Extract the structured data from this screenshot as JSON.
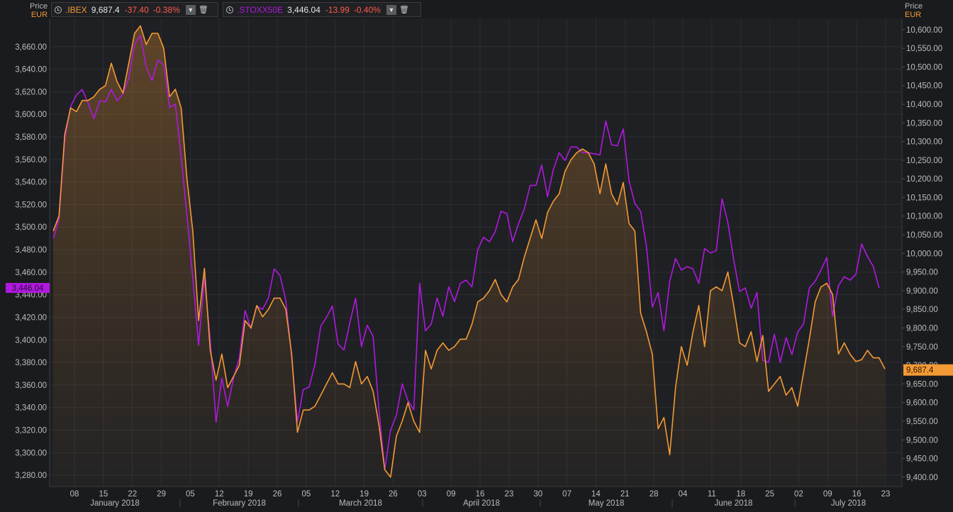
{
  "legend": {
    "ibex": {
      "symbol": ".IBEX",
      "last": "9,687.4",
      "change": "-37.40",
      "pct": "-0.38%"
    },
    "stoxx": {
      "symbol": ".STOXX50E",
      "last": "3,446.04",
      "change": "-13.99",
      "pct": "-0.40%"
    }
  },
  "left_axis": {
    "label": "Price",
    "currency": "EUR"
  },
  "right_axis": {
    "label": "Price",
    "currency": "EUR"
  },
  "colors": {
    "ibex": "#f39a34",
    "stoxx": "#b019e0",
    "background": "#1a1b1e",
    "grid": "#2d2e32",
    "text": "#bcbcbc",
    "negative": "#ff5a4a"
  },
  "icons": [
    "clock-icon",
    "chevron-down-icon",
    "trash-icon"
  ],
  "chart_data": {
    "type": "line",
    "x_ticks": [
      "08",
      "15",
      "22",
      "29",
      "05",
      "12",
      "19",
      "26",
      "05",
      "12",
      "19",
      "26",
      "03",
      "09",
      "16",
      "23",
      "30",
      "07",
      "14",
      "21",
      "28",
      "04",
      "11",
      "18",
      "25",
      "02",
      "09",
      "16",
      "23"
    ],
    "months": [
      "January 2018",
      "February 2018",
      "March 2018",
      "April 2018",
      "May 2018",
      "June 2018",
      "July 2018"
    ],
    "left_axis": {
      "series": "STOXX50E",
      "ylim": [
        3270,
        3685
      ],
      "ticks": [
        "3,280.00",
        "3,300.00",
        "3,320.00",
        "3,340.00",
        "3,360.00",
        "3,380.00",
        "3,400.00",
        "3,420.00",
        "3,440.00",
        "3,460.00",
        "3,480.00",
        "3,500.00",
        "3,520.00",
        "3,540.00",
        "3,560.00",
        "3,580.00",
        "3,600.00",
        "3,620.00",
        "3,640.00",
        "3,660.00"
      ],
      "last_label": "3,446.04"
    },
    "right_axis": {
      "series": "IBEX",
      "ylim": [
        9375,
        10630
      ],
      "ticks": [
        "9,400.00",
        "9,450.00",
        "9,500.00",
        "9,550.00",
        "9,600.00",
        "9,650.00",
        "9,700.00",
        "9,750.00",
        "9,800.00",
        "9,850.00",
        "9,900.00",
        "9,950.00",
        "10,000.00",
        "10,050.00",
        "10,100.00",
        "10,150.00",
        "10,200.00",
        "10,250.00",
        "10,300.00",
        "10,350.00",
        "10,400.00",
        "10,450.00",
        "10,500.00",
        "10,550.00",
        "10,600.00"
      ],
      "last_label": "9,687.4"
    },
    "series": [
      {
        "name": ".STOXX50E",
        "axis": "left",
        "values": [
          3490,
          3507,
          3578,
          3607,
          3617,
          3622,
          3610,
          3596,
          3612,
          3611,
          3622,
          3612,
          3618,
          3632,
          3662,
          3670,
          3642,
          3630,
          3648,
          3644,
          3606,
          3609,
          3562,
          3510,
          3455,
          3395,
          3455,
          3400,
          3327,
          3366,
          3341,
          3366,
          3384,
          3426,
          3410,
          3430,
          3427,
          3437,
          3463,
          3457,
          3435,
          3385,
          3327,
          3356,
          3358,
          3378,
          3412,
          3420,
          3430,
          3396,
          3391,
          3415,
          3437,
          3394,
          3413,
          3403,
          3338,
          3285,
          3320,
          3333,
          3361,
          3346,
          3338,
          3450,
          3408,
          3414,
          3437,
          3421,
          3447,
          3434,
          3450,
          3453,
          3447,
          3480,
          3491,
          3487,
          3496,
          3514,
          3512,
          3487,
          3503,
          3516,
          3537,
          3537,
          3555,
          3527,
          3551,
          3566,
          3559,
          3571,
          3571,
          3566,
          3566,
          3565,
          3564,
          3594,
          3573,
          3572,
          3587,
          3541,
          3521,
          3514,
          3483,
          3429,
          3442,
          3408,
          3452,
          3472,
          3462,
          3465,
          3463,
          3450,
          3481,
          3477,
          3479,
          3525,
          3504,
          3471,
          3443,
          3446,
          3428,
          3442,
          3382,
          3380,
          3405,
          3380,
          3402,
          3387,
          3407,
          3414,
          3446,
          3452,
          3462,
          3473,
          3421,
          3448,
          3456,
          3453,
          3458,
          3485,
          3474,
          3465,
          3446
        ]
      },
      {
        "name": ".IBEX",
        "axis": "right",
        "values": [
          10060,
          10100,
          10320,
          10390,
          10380,
          10410,
          10410,
          10420,
          10440,
          10450,
          10510,
          10460,
          10430,
          10510,
          10590,
          10610,
          10560,
          10590,
          10590,
          10550,
          10420,
          10440,
          10390,
          10200,
          10060,
          9820,
          9960,
          9740,
          9660,
          9730,
          9640,
          9670,
          9700,
          9820,
          9800,
          9860,
          9830,
          9850,
          9880,
          9880,
          9850,
          9730,
          9520,
          9580,
          9580,
          9590,
          9620,
          9650,
          9680,
          9650,
          9650,
          9640,
          9710,
          9650,
          9670,
          9630,
          9540,
          9420,
          9400,
          9510,
          9550,
          9600,
          9550,
          9520,
          9740,
          9690,
          9740,
          9760,
          9740,
          9750,
          9770,
          9770,
          9810,
          9870,
          9880,
          9900,
          9930,
          9890,
          9870,
          9910,
          9930,
          9990,
          10040,
          10090,
          10040,
          10110,
          10140,
          10160,
          10220,
          10250,
          10270,
          10280,
          10270,
          10240,
          10160,
          10240,
          10160,
          10130,
          10190,
          10080,
          10060,
          9840,
          9790,
          9730,
          9530,
          9560,
          9460,
          9640,
          9750,
          9700,
          9790,
          9860,
          9750,
          9900,
          9910,
          9900,
          9950,
          9860,
          9760,
          9750,
          9790,
          9710,
          9780,
          9630,
          9650,
          9670,
          9620,
          9640,
          9590,
          9680,
          9770,
          9870,
          9910,
          9920,
          9890,
          9730,
          9760,
          9730,
          9710,
          9715,
          9740,
          9720,
          9720,
          9690
        ]
      }
    ]
  }
}
